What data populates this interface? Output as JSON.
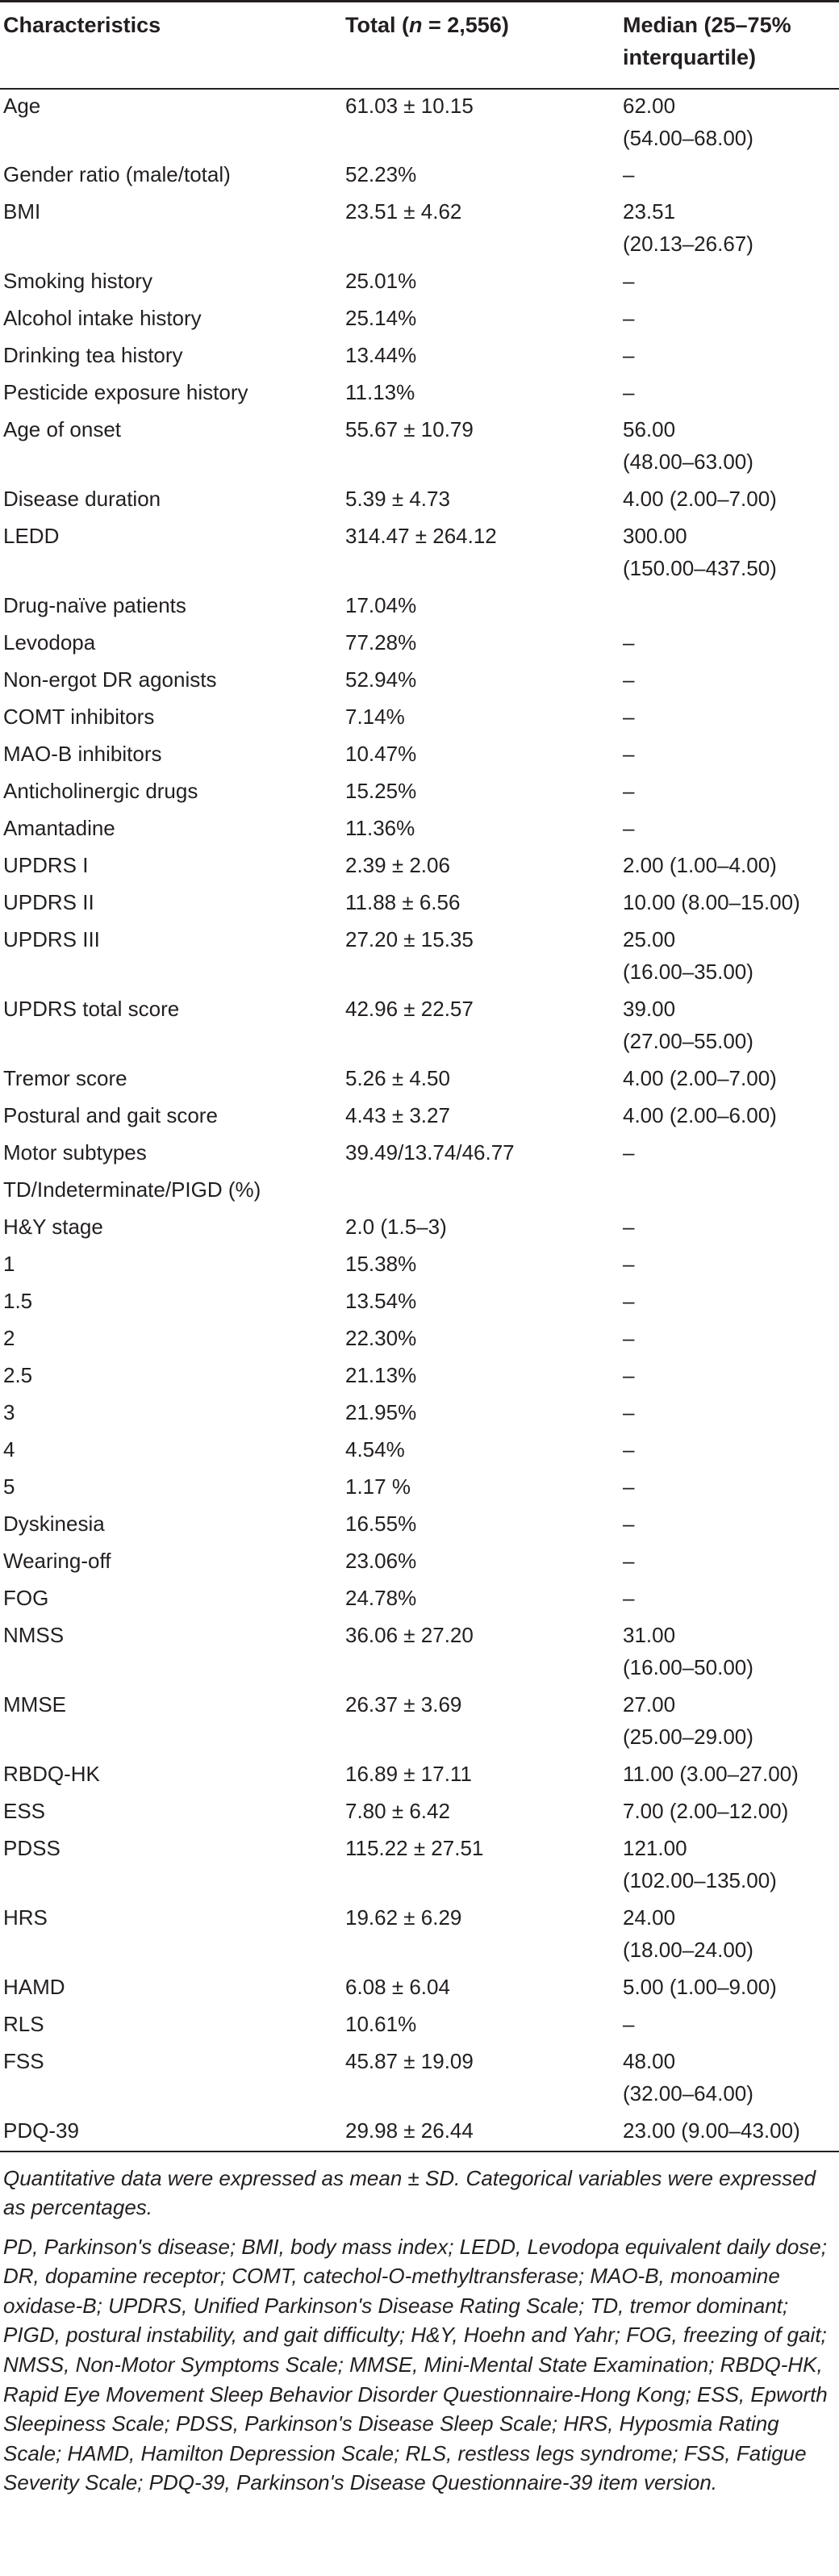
{
  "table": {
    "headers": [
      "Characteristics",
      "Total (n = 2,556)",
      "Median (25–75% interquartile)"
    ],
    "rows": [
      {
        "characteristic": "Age",
        "total": "61.03 ± 10.15",
        "median": "62.00\n(54.00–68.00)"
      },
      {
        "characteristic": "Gender ratio (male/total)",
        "total": "52.23%",
        "median": "–"
      },
      {
        "characteristic": "BMI",
        "total": "23.51 ± 4.62",
        "median": "23.51\n(20.13–26.67)"
      },
      {
        "characteristic": "Smoking history",
        "total": "25.01%",
        "median": "–"
      },
      {
        "characteristic": "Alcohol intake history",
        "total": "25.14%",
        "median": "–"
      },
      {
        "characteristic": "Drinking tea history",
        "total": "13.44%",
        "median": "–"
      },
      {
        "characteristic": "Pesticide exposure history",
        "total": "11.13%",
        "median": "–"
      },
      {
        "characteristic": "Age of onset",
        "total": "55.67 ± 10.79",
        "median": "56.00\n(48.00–63.00)"
      },
      {
        "characteristic": "Disease duration",
        "total": "5.39 ± 4.73",
        "median": "4.00 (2.00–7.00)"
      },
      {
        "characteristic": "LEDD",
        "total": "314.47 ± 264.12",
        "median": "300.00\n(150.00–437.50)"
      },
      {
        "characteristic": "Drug-naïve patients",
        "total": "17.04%",
        "median": ""
      },
      {
        "characteristic": "Levodopa",
        "total": "77.28%",
        "median": "–"
      },
      {
        "characteristic": "Non-ergot DR agonists",
        "total": "52.94%",
        "median": "–"
      },
      {
        "characteristic": "COMT inhibitors",
        "total": "7.14%",
        "median": "–"
      },
      {
        "characteristic": "MAO-B inhibitors",
        "total": "10.47%",
        "median": "–"
      },
      {
        "characteristic": "Anticholinergic drugs",
        "total": "15.25%",
        "median": "–"
      },
      {
        "characteristic": "Amantadine",
        "total": "11.36%",
        "median": "–"
      },
      {
        "characteristic": "UPDRS I",
        "total": "2.39 ± 2.06",
        "median": "2.00 (1.00–4.00)"
      },
      {
        "characteristic": "UPDRS II",
        "total": "11.88 ± 6.56",
        "median": "10.00 (8.00–15.00)"
      },
      {
        "characteristic": "UPDRS III",
        "total": "27.20 ± 15.35",
        "median": "25.00\n(16.00–35.00)"
      },
      {
        "characteristic": "UPDRS total score",
        "total": "42.96 ± 22.57",
        "median": "39.00\n(27.00–55.00)"
      },
      {
        "characteristic": "Tremor score",
        "total": "5.26 ± 4.50",
        "median": "4.00 (2.00–7.00)"
      },
      {
        "characteristic": "Postural and gait score",
        "total": "4.43 ± 3.27",
        "median": "4.00 (2.00–6.00)"
      },
      {
        "characteristic": "Motor subtypes",
        "total": "39.49/13.74/46.77",
        "median": "–"
      },
      {
        "characteristic": "TD/Indeterminate/PIGD (%)",
        "total": "",
        "median": ""
      },
      {
        "characteristic": "H&Y stage",
        "total": "2.0 (1.5–3)",
        "median": "–"
      },
      {
        "characteristic": "1",
        "total": "15.38%",
        "median": "–"
      },
      {
        "characteristic": "1.5",
        "total": "13.54%",
        "median": "–"
      },
      {
        "characteristic": "2",
        "total": "22.30%",
        "median": "–"
      },
      {
        "characteristic": "2.5",
        "total": "21.13%",
        "median": "–"
      },
      {
        "characteristic": "3",
        "total": "21.95%",
        "median": "–"
      },
      {
        "characteristic": "4",
        "total": "4.54%",
        "median": "–"
      },
      {
        "characteristic": "5",
        "total": "1.17 %",
        "median": "–"
      },
      {
        "characteristic": "Dyskinesia",
        "total": "16.55%",
        "median": "–"
      },
      {
        "characteristic": "Wearing-off",
        "total": "23.06%",
        "median": "–"
      },
      {
        "characteristic": "FOG",
        "total": "24.78%",
        "median": "–"
      },
      {
        "characteristic": "NMSS",
        "total": "36.06 ± 27.20",
        "median": "31.00\n(16.00–50.00)"
      },
      {
        "characteristic": "MMSE",
        "total": "26.37 ± 3.69",
        "median": "27.00\n(25.00–29.00)"
      },
      {
        "characteristic": "RBDQ-HK",
        "total": "16.89 ± 17.11",
        "median": "11.00 (3.00–27.00)"
      },
      {
        "characteristic": "ESS",
        "total": "7.80 ± 6.42",
        "median": "7.00 (2.00–12.00)"
      },
      {
        "characteristic": "PDSS",
        "total": "115.22 ± 27.51",
        "median": "121.00\n(102.00–135.00)"
      },
      {
        "characteristic": "HRS",
        "total": "19.62 ± 6.29",
        "median": "24.00\n(18.00–24.00)"
      },
      {
        "characteristic": "HAMD",
        "total": "6.08 ± 6.04",
        "median": "5.00 (1.00–9.00)"
      },
      {
        "characteristic": "RLS",
        "total": "10.61%",
        "median": "–"
      },
      {
        "characteristic": "FSS",
        "total": "45.87 ± 19.09",
        "median": "48.00\n(32.00–64.00)"
      },
      {
        "characteristic": "PDQ-39",
        "total": "29.98 ± 26.44",
        "median": "23.00 (9.00–43.00)"
      }
    ]
  },
  "footnotes": [
    "Quantitative data were expressed as mean ± SD. Categorical variables were expressed as percentages.",
    "PD, Parkinson's disease; BMI, body mass index; LEDD, Levodopa equivalent daily dose; DR, dopamine receptor; COMT, catechol-O-methyltransferase; MAO-B, monoamine oxidase-B; UPDRS, Unified Parkinson's Disease Rating Scale; TD, tremor dominant; PIGD, postural instability, and gait difficulty; H&Y, Hoehn and Yahr; FOG, freezing of gait; NMSS, Non-Motor Symptoms Scale; MMSE, Mini-Mental State Examination; RBDQ-HK, Rapid Eye Movement Sleep Behavior Disorder Questionnaire-Hong Kong; ESS, Epworth Sleepiness Scale; PDSS, Parkinson's Disease Sleep Scale; HRS, Hyposmia Rating Scale; HAMD, Hamilton Depression Scale; RLS, restless legs syndrome; FSS, Fatigue Severity Scale; PDQ-39, Parkinson's Disease Questionnaire-39 item version."
  ]
}
